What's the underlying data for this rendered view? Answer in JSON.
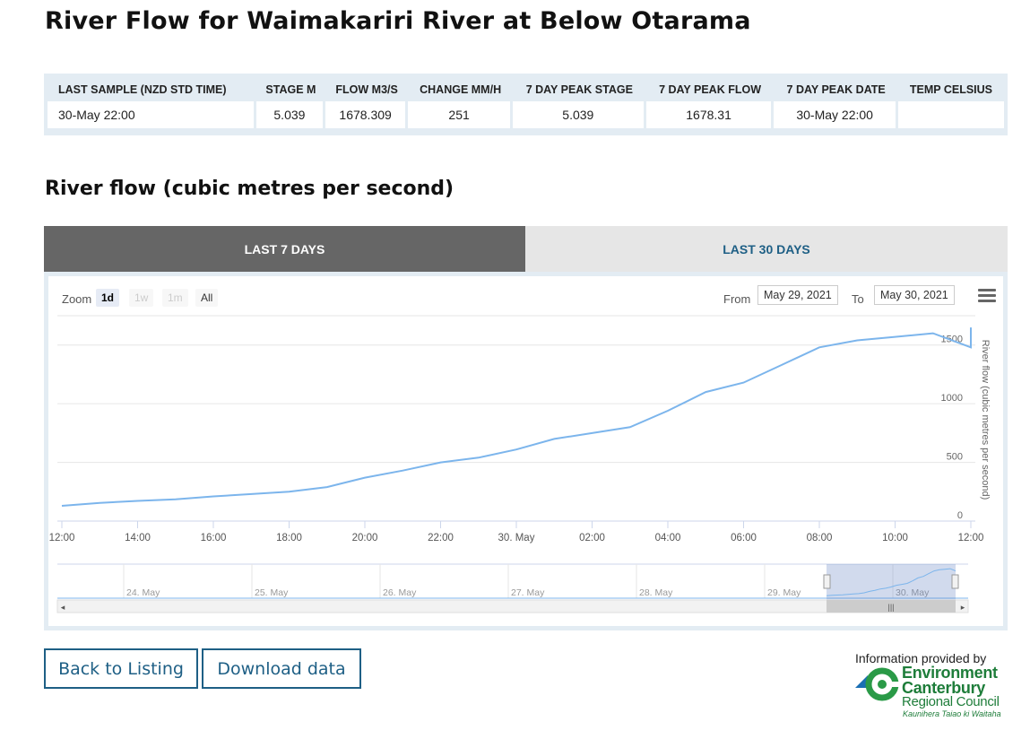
{
  "page_title": "River Flow for Waimakariri River at Below Otarama",
  "summary": {
    "headers": [
      "LAST SAMPLE (NZD STD TIME)",
      "STAGE M",
      "FLOW M3/S",
      "CHANGE MM/H",
      "7 DAY PEAK STAGE",
      "7 DAY PEAK FLOW",
      "7 DAY PEAK DATE",
      "TEMP CELSIUS"
    ],
    "row": [
      "30-May 22:00",
      "5.039",
      "1678.309",
      "251",
      "5.039",
      "1678.31",
      "30-May 22:00",
      ""
    ]
  },
  "section_title": "River flow (cubic metres per second)",
  "tabs": {
    "active": "LAST 7 DAYS",
    "inactive": "LAST 30 DAYS"
  },
  "chart_ui": {
    "zoom_label": "Zoom",
    "zoom_buttons": [
      "1d",
      "1w",
      "1m",
      "All"
    ],
    "from_label": "From",
    "from_value": "May 29, 2021",
    "to_label": "To",
    "to_value": "May 30, 2021",
    "line_color": "#7cb5ec"
  },
  "chart_data": {
    "type": "line",
    "ylabel": "River flow (cubic metres per second)",
    "ylim": [
      0,
      1750
    ],
    "yticks": [
      0,
      500,
      1000,
      1500
    ],
    "xticks": [
      "12:00",
      "14:00",
      "16:00",
      "18:00",
      "20:00",
      "22:00",
      "30. May",
      "02:00",
      "04:00",
      "06:00",
      "08:00",
      "10:00",
      "12:00"
    ],
    "grid": true,
    "series": [
      {
        "hours": [
          0,
          1,
          2,
          3,
          4,
          5,
          6,
          7,
          8,
          9,
          10,
          11,
          12,
          13,
          14,
          15,
          16,
          17,
          18,
          19,
          20,
          21,
          22,
          23,
          24
        ],
        "values": [
          130,
          155,
          172,
          186,
          210,
          230,
          250,
          290,
          370,
          430,
          500,
          540,
          610,
          700,
          750,
          800,
          940,
          1100,
          1180,
          1330,
          1480,
          1540,
          1570,
          1600,
          1480
        ]
      }
    ],
    "navigator_labels": [
      "24. May",
      "25. May",
      "26. May",
      "27. May",
      "28. May",
      "29. May",
      "30. May"
    ]
  },
  "buttons": {
    "back": "Back to Listing",
    "download": "Download data"
  },
  "footer": {
    "info": "Information provided by",
    "logo_line1": "Environment",
    "logo_line2": "Canterbury",
    "logo_line3": "Regional Council",
    "logo_line4": "Kaunihera Taiao ki Waitaha"
  }
}
